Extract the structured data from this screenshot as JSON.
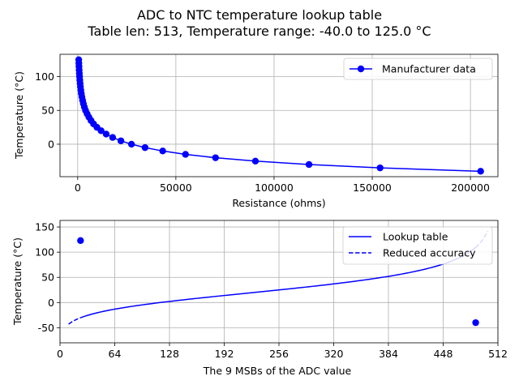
{
  "figure": {
    "title_line1": "ADC to NTC temperature lookup table",
    "title_line2": "Table len: 513, Temperature range: -40.0 to 125.0 °C"
  },
  "chart_data": [
    {
      "type": "line",
      "xlabel": "Resistance (ohms)",
      "ylabel": "Temperature (°C)",
      "xlim": [
        -9000,
        214000
      ],
      "ylim": [
        -48,
        133
      ],
      "xticks": [
        0,
        50000,
        100000,
        150000,
        200000
      ],
      "yticks": [
        0,
        50,
        100
      ],
      "grid": true,
      "legend_position": "top-right",
      "series": [
        {
          "name": "Manufacturer data",
          "color": "#0000ff",
          "marker": "circle",
          "points": [
            [
              205200,
              -40
            ],
            [
              154000,
              -35
            ],
            [
              117800,
              -30
            ],
            [
              90500,
              -25
            ],
            [
              70200,
              -20
            ],
            [
              54900,
              -15
            ],
            [
              43300,
              -10
            ],
            [
              34300,
              -5
            ],
            [
              27400,
              0
            ],
            [
              22000,
              5
            ],
            [
              17800,
              10
            ],
            [
              14500,
              15
            ],
            [
              11900,
              20
            ],
            [
              9800,
              25
            ],
            [
              8100,
              30
            ],
            [
              6800,
              35
            ],
            [
              5700,
              40
            ],
            [
              4800,
              45
            ],
            [
              4000,
              50
            ],
            [
              3400,
              55
            ],
            [
              2900,
              60
            ],
            [
              2500,
              65
            ],
            [
              2150,
              70
            ],
            [
              1850,
              75
            ],
            [
              1600,
              80
            ],
            [
              1400,
              85
            ],
            [
              1230,
              90
            ],
            [
              1080,
              95
            ],
            [
              950,
              100
            ],
            [
              840,
              105
            ],
            [
              740,
              110
            ],
            [
              660,
              115
            ],
            [
              590,
              120
            ],
            [
              530,
              125
            ]
          ]
        }
      ]
    },
    {
      "type": "line",
      "xlabel": "The 9 MSBs of the ADC value",
      "ylabel": "Temperature (°C)",
      "xlim": [
        0,
        512
      ],
      "ylim": [
        -80,
        163
      ],
      "xticks": [
        0,
        64,
        128,
        192,
        256,
        320,
        384,
        448,
        512
      ],
      "yticks": [
        -50,
        0,
        50,
        100,
        150
      ],
      "grid": true,
      "legend_position": "top-right",
      "series": [
        {
          "name": "Lookup table",
          "color": "#0000ff",
          "style": "solid",
          "x_range": [
            24,
            486
          ]
        },
        {
          "name": "Reduced accuracy",
          "color": "#0000ff",
          "style": "dashed",
          "x_ranges": [
            [
              10,
              24
            ],
            [
              486,
              500
            ]
          ]
        }
      ],
      "endpoints": [
        [
          24,
          123
        ],
        [
          486,
          -40
        ]
      ]
    }
  ]
}
